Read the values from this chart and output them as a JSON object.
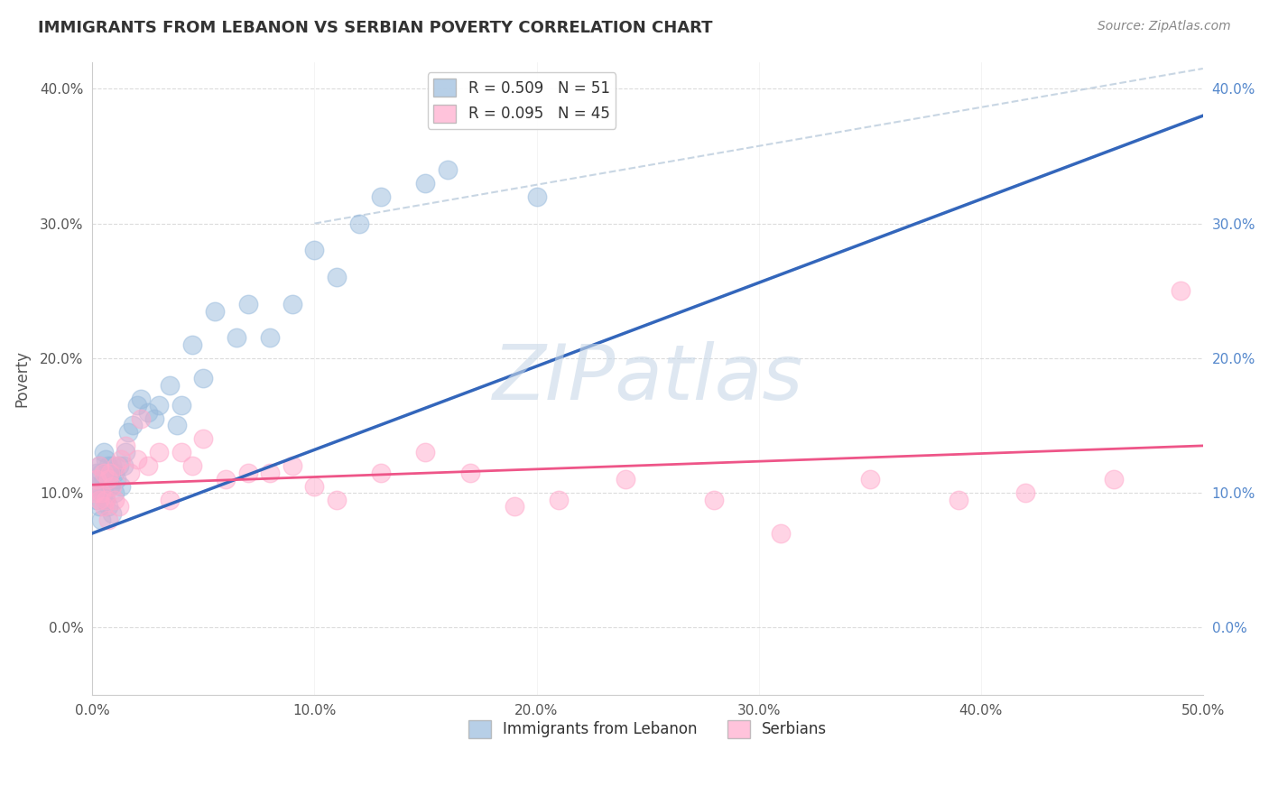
{
  "title": "IMMIGRANTS FROM LEBANON VS SERBIAN POVERTY CORRELATION CHART",
  "source": "Source: ZipAtlas.com",
  "ylabel": "Poverty",
  "xlim": [
    0.0,
    0.5
  ],
  "ylim": [
    -0.05,
    0.42
  ],
  "xticks": [
    0.0,
    0.1,
    0.2,
    0.3,
    0.4,
    0.5
  ],
  "xticklabels": [
    "0.0%",
    "10.0%",
    "20.0%",
    "30.0%",
    "40.0%",
    "50.0%"
  ],
  "yticks": [
    0.0,
    0.1,
    0.2,
    0.3,
    0.4
  ],
  "yticklabels": [
    "0.0%",
    "10.0%",
    "20.0%",
    "30.0%",
    "40.0%"
  ],
  "legend1_label": "R = 0.509   N = 51",
  "legend2_label": "R = 0.095   N = 45",
  "legend3_label": "Immigrants from Lebanon",
  "legend4_label": "Serbians",
  "blue_color": "#99BBDD",
  "pink_color": "#FFAACC",
  "blue_line_color": "#3366BB",
  "pink_line_color": "#EE5588",
  "watermark": "ZIPatlas",
  "watermark_color": "#C8D8E8",
  "background_color": "#FFFFFF",
  "grid_color": "#CCCCCC",
  "title_color": "#333333",
  "right_tick_color": "#5588CC",
  "lebanon_x": [
    0.001,
    0.002,
    0.002,
    0.003,
    0.003,
    0.003,
    0.004,
    0.004,
    0.004,
    0.005,
    0.005,
    0.005,
    0.006,
    0.006,
    0.007,
    0.007,
    0.008,
    0.008,
    0.009,
    0.009,
    0.01,
    0.01,
    0.011,
    0.012,
    0.013,
    0.014,
    0.015,
    0.016,
    0.018,
    0.02,
    0.022,
    0.025,
    0.028,
    0.03,
    0.035,
    0.038,
    0.04,
    0.045,
    0.05,
    0.055,
    0.065,
    0.07,
    0.08,
    0.09,
    0.1,
    0.11,
    0.12,
    0.13,
    0.15,
    0.16,
    0.2
  ],
  "lebanon_y": [
    0.105,
    0.115,
    0.095,
    0.12,
    0.09,
    0.105,
    0.08,
    0.1,
    0.115,
    0.1,
    0.11,
    0.13,
    0.095,
    0.125,
    0.09,
    0.12,
    0.105,
    0.115,
    0.085,
    0.12,
    0.1,
    0.115,
    0.11,
    0.12,
    0.105,
    0.12,
    0.13,
    0.145,
    0.15,
    0.165,
    0.17,
    0.16,
    0.155,
    0.165,
    0.18,
    0.15,
    0.165,
    0.21,
    0.185,
    0.235,
    0.215,
    0.24,
    0.215,
    0.24,
    0.28,
    0.26,
    0.3,
    0.32,
    0.33,
    0.34,
    0.32
  ],
  "serbia_x": [
    0.001,
    0.002,
    0.003,
    0.003,
    0.004,
    0.005,
    0.005,
    0.006,
    0.007,
    0.007,
    0.008,
    0.009,
    0.01,
    0.011,
    0.012,
    0.013,
    0.015,
    0.017,
    0.02,
    0.022,
    0.025,
    0.03,
    0.035,
    0.04,
    0.045,
    0.05,
    0.06,
    0.07,
    0.08,
    0.09,
    0.1,
    0.11,
    0.13,
    0.15,
    0.17,
    0.19,
    0.21,
    0.24,
    0.28,
    0.31,
    0.35,
    0.39,
    0.42,
    0.46,
    0.49
  ],
  "serbia_y": [
    0.1,
    0.11,
    0.095,
    0.12,
    0.1,
    0.09,
    0.115,
    0.095,
    0.08,
    0.11,
    0.115,
    0.105,
    0.095,
    0.12,
    0.09,
    0.125,
    0.135,
    0.115,
    0.125,
    0.155,
    0.12,
    0.13,
    0.095,
    0.13,
    0.12,
    0.14,
    0.11,
    0.115,
    0.115,
    0.12,
    0.105,
    0.095,
    0.115,
    0.13,
    0.115,
    0.09,
    0.095,
    0.11,
    0.095,
    0.07,
    0.11,
    0.095,
    0.1,
    0.11,
    0.25
  ],
  "blue_line_x": [
    0.0,
    0.5
  ],
  "blue_line_y": [
    0.07,
    0.38
  ],
  "pink_line_x": [
    0.0,
    0.5
  ],
  "pink_line_y": [
    0.106,
    0.135
  ],
  "diag_line_x": [
    0.1,
    0.5
  ],
  "diag_line_y": [
    0.3,
    0.415
  ]
}
